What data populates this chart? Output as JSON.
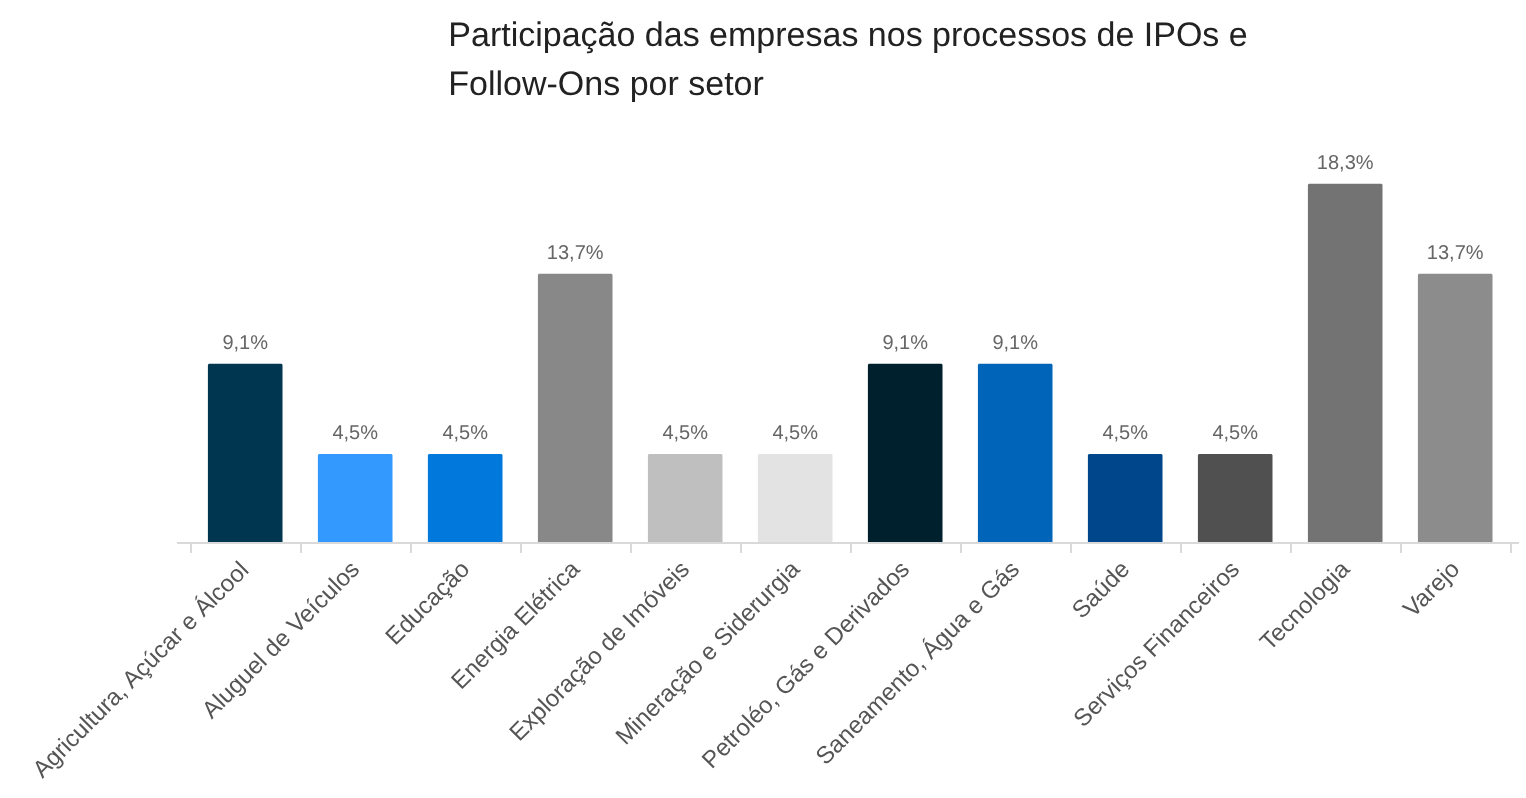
{
  "chart_data": {
    "type": "bar",
    "title": "Participação das empresas nos processos de IPOs e Follow-Ons por setor",
    "categories": [
      "Agricultura, Açúcar e Álcool",
      "Aluguel de Veículos",
      "Educação",
      "Energia Elétrica",
      "Exploração de Imóveis",
      "Mineração e Siderurgia",
      "Petroléo, Gás e Derivados",
      "Saneamento, Água e Gás",
      "Saúde",
      "Serviços Financeiros",
      "Tecnologia",
      "Varejo"
    ],
    "values": [
      9.1,
      4.5,
      4.5,
      13.7,
      4.5,
      4.5,
      9.1,
      9.1,
      4.5,
      4.5,
      18.3,
      13.7
    ],
    "value_labels": [
      "9,1%",
      "4,5%",
      "4,5%",
      "13,7%",
      "4,5%",
      "4,5%",
      "9,1%",
      "9,1%",
      "4,5%",
      "4,5%",
      "18,3%",
      "13,7%"
    ],
    "colors": [
      "#003650",
      "#3399ff",
      "#0078dc",
      "#888888",
      "#bfbfbf",
      "#e3e3e3",
      "#00202e",
      "#0064b9",
      "#00468a",
      "#505050",
      "#737373",
      "#8c8c8c"
    ],
    "tick_labels": "x"
  }
}
